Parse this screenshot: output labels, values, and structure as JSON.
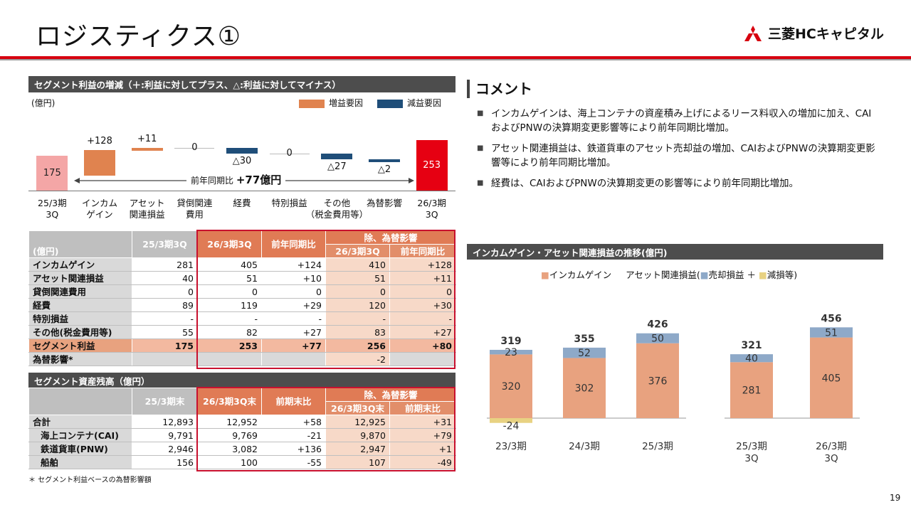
{
  "header": {
    "title": "ロジスティクス①",
    "logo_text": "三菱HCキャピタル",
    "brand_color": "#d7000f"
  },
  "waterfall": {
    "header": "セグメント利益の増減（＋:利益に対してプラス、△:利益に対してマイナス）",
    "unit": "(億円)",
    "legend": [
      {
        "label": "増益要因",
        "color": "#e0834f"
      },
      {
        "label": "減益要因",
        "color": "#1f4e79"
      }
    ],
    "bars": [
      {
        "category": "25/3期\n3Q",
        "label": "175",
        "value": 175,
        "type": "total",
        "color": "#f4a6a6"
      },
      {
        "category": "インカム\nゲイン",
        "label": "+128",
        "value": 128,
        "type": "increase"
      },
      {
        "category": "アセット\n関連損益",
        "label": "+11",
        "value": 11,
        "type": "increase"
      },
      {
        "category": "貸倒関連\n費用",
        "label": "0",
        "value": 0,
        "type": "zero"
      },
      {
        "category": "経費",
        "label": "△30",
        "value": -30,
        "type": "decrease"
      },
      {
        "category": "特別損益",
        "label": "0",
        "value": 0,
        "type": "zero"
      },
      {
        "category": "その他\n（税金費用等）",
        "label": "△27",
        "value": -27,
        "type": "decrease"
      },
      {
        "category": "為替影響",
        "label": "△2",
        "value": -2,
        "type": "decrease"
      },
      {
        "category": "26/3期\n3Q",
        "label": "253",
        "value": 253,
        "type": "total",
        "color": "#e60012"
      }
    ],
    "arrow_label": "前年同期比",
    "arrow_value": "+77億円"
  },
  "comment": {
    "title": "コメント",
    "items": [
      "インカムゲインは、海上コンテナの資産積み上げによるリース料収入の増加に加え、CAIおよびPNWの決算期変更影響等により前年同期比増加。",
      "アセット関連損益は、鉄道貨車のアセット売却益の増加、CAIおよびPNWの決算期変更影響等により前年同期比増加。",
      "経費は、CAIおよびPNWの決算期変更の影響等により前年同期比増加。"
    ]
  },
  "profit_table": {
    "unit": "(億円)",
    "col_prev": "25/3期3Q",
    "col_curr": "26/3期3Q",
    "col_yoy": "前年同期比",
    "ex_group": "除、為替影響",
    "col_ex_curr": "26/3期3Q",
    "col_ex_yoy": "前年同期比",
    "rows": [
      {
        "label": "インカムゲイン",
        "prev": "281",
        "curr": "405",
        "yoy": "+124",
        "ex_curr": "410",
        "ex_yoy": "+128"
      },
      {
        "label": "アセット関連損益",
        "prev": "40",
        "curr": "51",
        "yoy": "+10",
        "ex_curr": "51",
        "ex_yoy": "+11"
      },
      {
        "label": "貸倒関連費用",
        "prev": "0",
        "curr": "0",
        "yoy": "0",
        "ex_curr": "0",
        "ex_yoy": "0"
      },
      {
        "label": "経費",
        "prev": "89",
        "curr": "119",
        "yoy": "+29",
        "ex_curr": "120",
        "ex_yoy": "+30"
      },
      {
        "label": "特別損益",
        "prev": "-",
        "curr": "-",
        "yoy": "-",
        "ex_curr": "-",
        "ex_yoy": "-"
      },
      {
        "label": "その他(税金費用等)",
        "prev": "55",
        "curr": "82",
        "yoy": "+27",
        "ex_curr": "83",
        "ex_yoy": "+27"
      },
      {
        "label": "セグメント利益",
        "prev": "175",
        "curr": "253",
        "yoy": "+77",
        "ex_curr": "256",
        "ex_yoy": "+80"
      },
      {
        "label": "為替影響*",
        "prev": "",
        "curr": "",
        "yoy": "",
        "ex_curr": "-2",
        "ex_yoy": ""
      }
    ]
  },
  "asset_table": {
    "header": "セグメント資産残高（億円）",
    "col_prev": "25/3期末",
    "col_curr": "26/3期3Q末",
    "col_chg": "前期末比",
    "ex_group": "除、為替影響",
    "col_ex_curr": "26/3期3Q末",
    "col_ex_chg": "前期末比",
    "rows": [
      {
        "label": "合計",
        "prev": "12,893",
        "curr": "12,952",
        "chg": "+58",
        "ex_curr": "12,925",
        "ex_chg": "+31"
      },
      {
        "label": "海上コンテナ(CAI)",
        "prev": "9,791",
        "curr": "9,769",
        "chg": "-21",
        "ex_curr": "9,870",
        "ex_chg": "+79"
      },
      {
        "label": "鉄道貨車(PNW)",
        "prev": "2,946",
        "curr": "3,082",
        "chg": "+136",
        "ex_curr": "2,947",
        "ex_chg": "+1"
      },
      {
        "label": "船舶",
        "prev": "156",
        "curr": "100",
        "chg": "-55",
        "ex_curr": "107",
        "ex_chg": "-49"
      }
    ]
  },
  "note": "＊ セグメント利益ベースの為替影響額",
  "chart_data": {
    "type": "bar",
    "title": "インカムゲイン・アセット関連損益の推移(億円)",
    "legend_income": "インカムゲイン",
    "legend_asset_prefix": "アセット関連損益(",
    "legend_sale": "売却損益 ＋",
    "legend_impair": "減損等)",
    "categories": [
      "23/3期",
      "24/3期",
      "25/3期",
      "25/3期\n3Q",
      "26/3期\n3Q"
    ],
    "totals": [
      "319",
      "355",
      "426",
      "321",
      "456"
    ],
    "series": [
      {
        "name": "インカムゲイン",
        "color": "#e8a27f",
        "values": [
          320,
          302,
          376,
          281,
          405
        ]
      },
      {
        "name": "売却損益",
        "color": "#8ea9c8",
        "values": [
          23,
          52,
          50,
          40,
          51
        ]
      },
      {
        "name": "減損等",
        "color": "#e8d282",
        "values": [
          -24,
          0,
          0,
          0,
          0
        ]
      }
    ]
  },
  "page_number": "19"
}
